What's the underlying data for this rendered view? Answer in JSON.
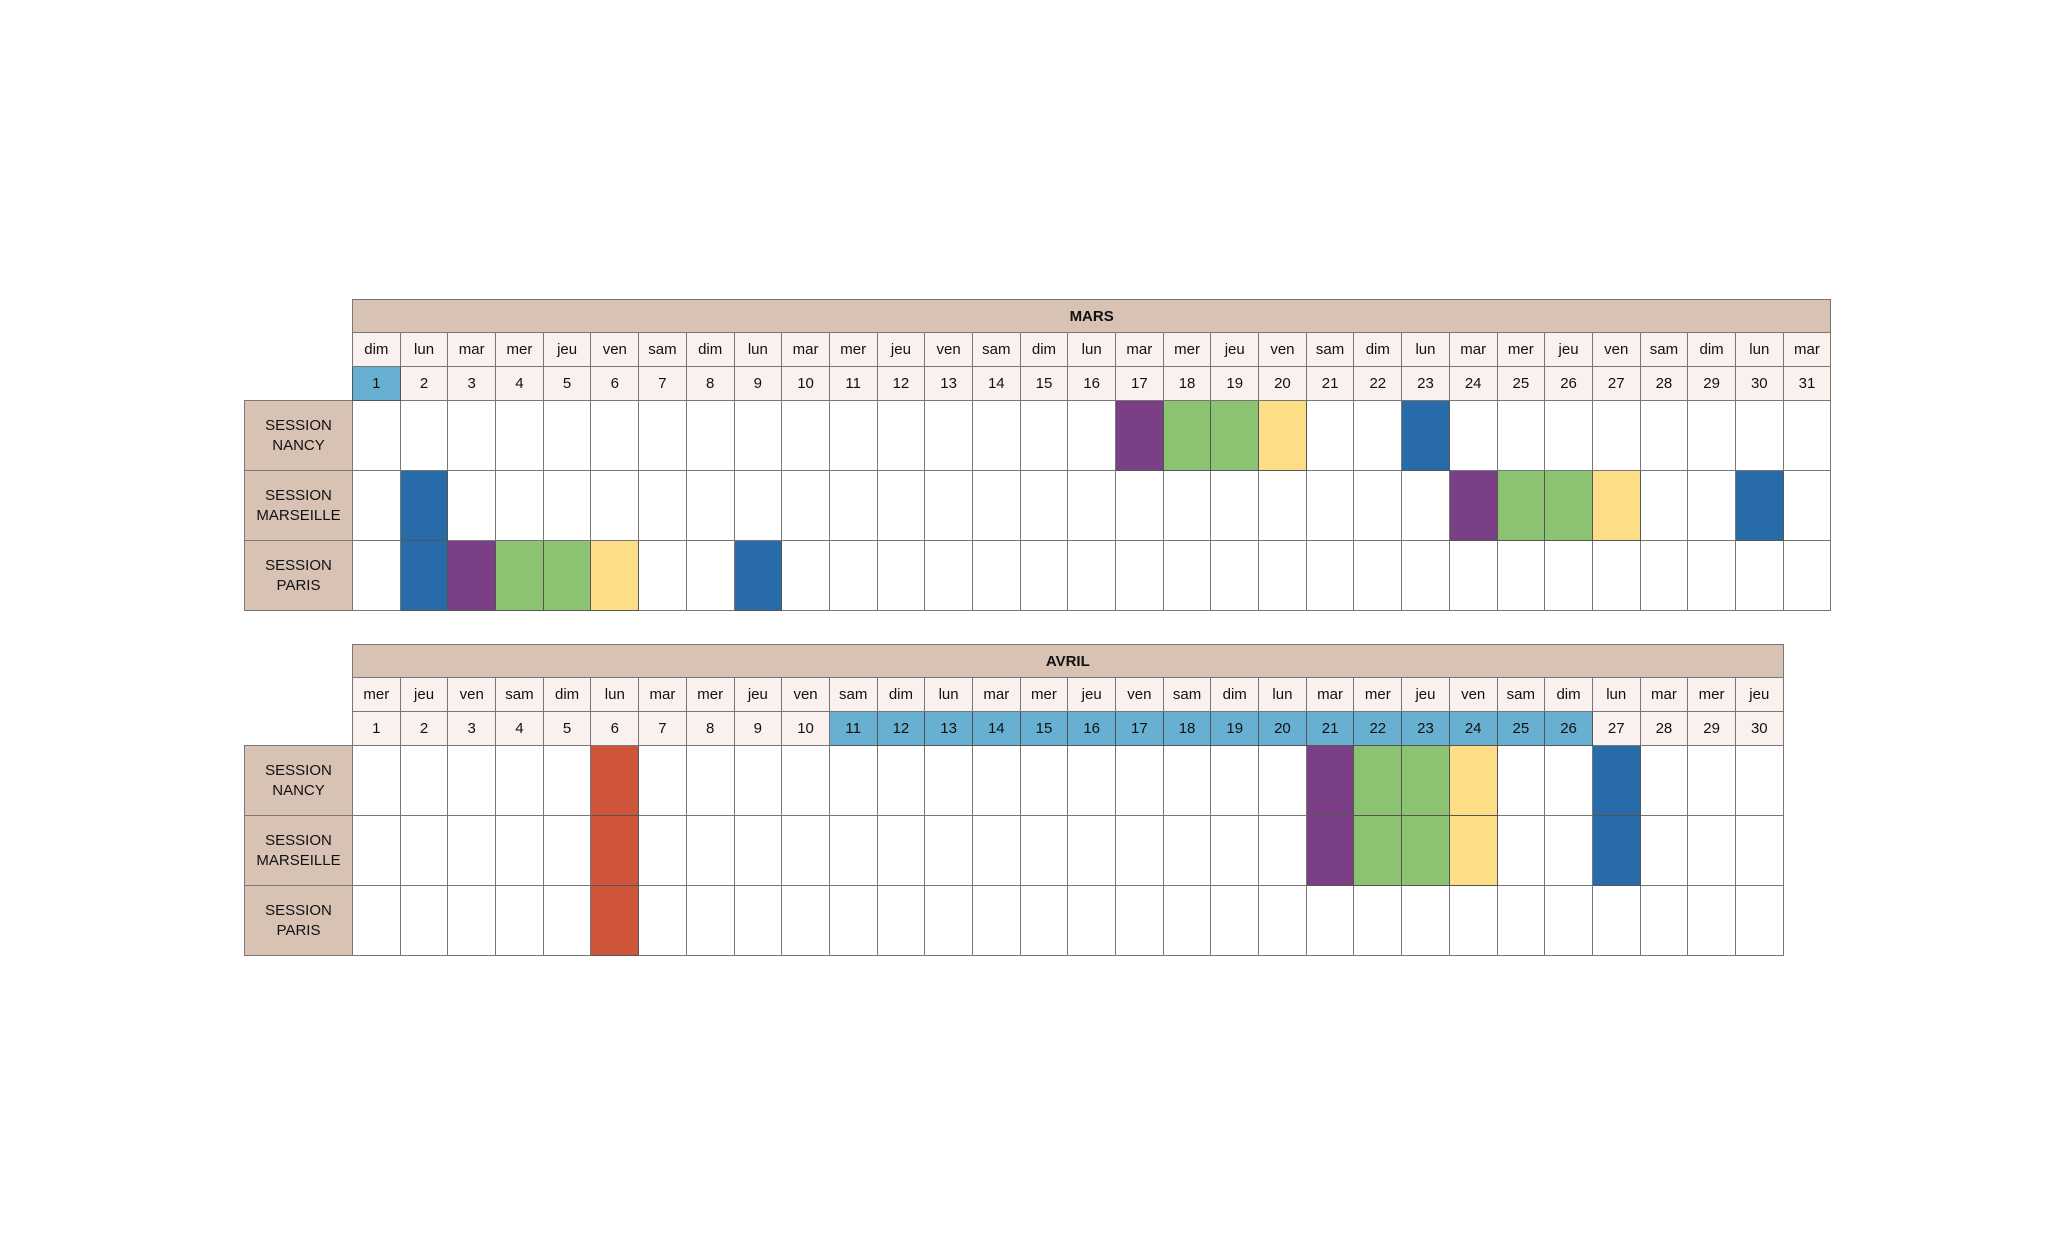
{
  "colors": {
    "header": "#d8c2b4",
    "day_bg": "#faf0ee",
    "highlight": "#67b0d1",
    "blue": "#276ca8",
    "purple": "#7a3f84",
    "green": "#8cc372",
    "yellow": "#fdde86",
    "red": "#cf553a"
  },
  "months": [
    {
      "name": "MARS",
      "day_names": [
        "dim",
        "lun",
        "mar",
        "mer",
        "jeu",
        "ven",
        "sam",
        "dim",
        "lun",
        "mar",
        "mer",
        "jeu",
        "ven",
        "sam",
        "dim",
        "lun",
        "mar",
        "mer",
        "jeu",
        "ven",
        "sam",
        "dim",
        "lun",
        "mar",
        "mer",
        "jeu",
        "ven",
        "sam",
        "dim",
        "lun",
        "mar"
      ],
      "days": [
        "1",
        "2",
        "3",
        "4",
        "5",
        "6",
        "7",
        "8",
        "9",
        "10",
        "11",
        "12",
        "13",
        "14",
        "15",
        "16",
        "17",
        "18",
        "19",
        "20",
        "21",
        "22",
        "23",
        "24",
        "25",
        "26",
        "27",
        "28",
        "29",
        "30",
        "31"
      ],
      "highlighted_days": [
        1
      ],
      "sessions": [
        {
          "label": [
            "SESSION",
            "NANCY"
          ],
          "marks": {
            "17": "purple",
            "18": "green",
            "19": "green",
            "20": "yellow",
            "23": "blue"
          }
        },
        {
          "label": [
            "SESSION",
            "MARSEILLE"
          ],
          "marks": {
            "2": "blue",
            "24": "purple",
            "25": "green",
            "26": "green",
            "27": "yellow",
            "30": "blue"
          }
        },
        {
          "label": [
            "SESSION",
            "PARIS"
          ],
          "marks": {
            "2": "blue",
            "3": "purple",
            "4": "green",
            "5": "green",
            "6": "yellow",
            "9": "blue"
          }
        }
      ]
    },
    {
      "name": "AVRIL",
      "day_names": [
        "mer",
        "jeu",
        "ven",
        "sam",
        "dim",
        "lun",
        "mar",
        "mer",
        "jeu",
        "ven",
        "sam",
        "dim",
        "lun",
        "mar",
        "mer",
        "jeu",
        "ven",
        "sam",
        "dim",
        "lun",
        "mar",
        "mer",
        "jeu",
        "ven",
        "sam",
        "dim",
        "lun",
        "mar",
        "mer",
        "jeu"
      ],
      "days": [
        "1",
        "2",
        "3",
        "4",
        "5",
        "6",
        "7",
        "8",
        "9",
        "10",
        "11",
        "12",
        "13",
        "14",
        "15",
        "16",
        "17",
        "18",
        "19",
        "20",
        "21",
        "22",
        "23",
        "24",
        "25",
        "26",
        "27",
        "28",
        "29",
        "30"
      ],
      "highlighted_days": [
        11,
        12,
        13,
        14,
        15,
        16,
        17,
        18,
        19,
        20,
        21,
        22,
        23,
        24,
        25,
        26
      ],
      "sessions": [
        {
          "label": [
            "SESSION",
            "NANCY"
          ],
          "marks": {
            "6": "red",
            "21": "purple",
            "22": "green",
            "23": "green",
            "24": "yellow",
            "27": "blue"
          }
        },
        {
          "label": [
            "SESSION",
            "MARSEILLE"
          ],
          "marks": {
            "6": "red",
            "21": "purple",
            "22": "green",
            "23": "green",
            "24": "yellow",
            "27": "blue"
          }
        },
        {
          "label": [
            "SESSION",
            "PARIS"
          ],
          "marks": {
            "6": "red"
          }
        }
      ]
    }
  ]
}
